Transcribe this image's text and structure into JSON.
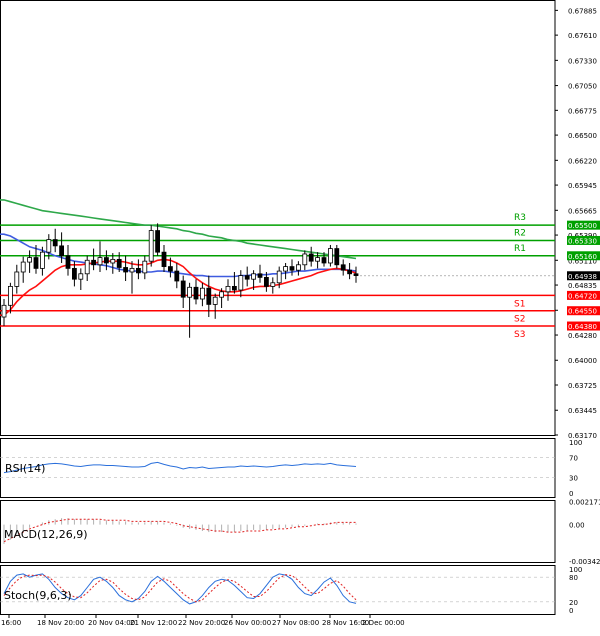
{
  "chart_data": [
    {
      "type": "candlestick",
      "panel": "price",
      "y_ticks": [
        "0.67885",
        "0.67610",
        "0.67330",
        "0.67050",
        "0.66775",
        "0.66500",
        "0.66220",
        "0.65945",
        "0.65665",
        "0.65390",
        "0.65110",
        "0.64835",
        "0.64555",
        "0.64280",
        "0.64000",
        "0.63725",
        "0.63445",
        "0.63170"
      ],
      "ylim": [
        0.6317,
        0.68
      ],
      "x_labels": [
        "16:00",
        "18 Nov 20:00",
        "20 Nov 04:00",
        "21 Nov 12:00",
        "22 Nov 20:00",
        "26 Nov 00:00",
        "27 Nov 08:00",
        "28 Nov 16:00",
        "2 Dec 00:00"
      ],
      "current_price": "0.64938",
      "pivot_levels": [
        {
          "name": "R3",
          "value": 0.655,
          "label": "0.65500",
          "color": "#00a000"
        },
        {
          "name": "R2",
          "value": 0.6533,
          "label": "0.65330",
          "color": "#00a000"
        },
        {
          "name": "R1",
          "value": 0.6516,
          "label": "0.65160",
          "color": "#00a000"
        },
        {
          "name": "S1",
          "value": 0.6472,
          "label": "0.64720",
          "color": "#ff0000"
        },
        {
          "name": "S2",
          "value": 0.6455,
          "label": "0.64550",
          "color": "#ff0000"
        },
        {
          "name": "S3",
          "value": 0.6438,
          "label": "0.64380",
          "color": "#ff0000"
        }
      ],
      "candles": [
        {
          "o": 0.6448,
          "h": 0.6468,
          "l": 0.6438,
          "c": 0.6461
        },
        {
          "o": 0.6461,
          "h": 0.6486,
          "l": 0.6452,
          "c": 0.6482
        },
        {
          "o": 0.6482,
          "h": 0.6506,
          "l": 0.6474,
          "c": 0.6498
        },
        {
          "o": 0.6498,
          "h": 0.6515,
          "l": 0.6486,
          "c": 0.6509
        },
        {
          "o": 0.6509,
          "h": 0.6522,
          "l": 0.6497,
          "c": 0.6514
        },
        {
          "o": 0.6514,
          "h": 0.6528,
          "l": 0.6496,
          "c": 0.6502
        },
        {
          "o": 0.6502,
          "h": 0.6526,
          "l": 0.6494,
          "c": 0.652
        },
        {
          "o": 0.652,
          "h": 0.654,
          "l": 0.6512,
          "c": 0.6534
        },
        {
          "o": 0.6534,
          "h": 0.6546,
          "l": 0.652,
          "c": 0.6527
        },
        {
          "o": 0.6527,
          "h": 0.6542,
          "l": 0.6508,
          "c": 0.6516
        },
        {
          "o": 0.6516,
          "h": 0.6528,
          "l": 0.6494,
          "c": 0.6502
        },
        {
          "o": 0.6502,
          "h": 0.651,
          "l": 0.6482,
          "c": 0.649
        },
        {
          "o": 0.649,
          "h": 0.6502,
          "l": 0.6478,
          "c": 0.6496
        },
        {
          "o": 0.6496,
          "h": 0.6516,
          "l": 0.6488,
          "c": 0.6511
        },
        {
          "o": 0.6511,
          "h": 0.6524,
          "l": 0.65,
          "c": 0.6506
        },
        {
          "o": 0.6506,
          "h": 0.6532,
          "l": 0.6498,
          "c": 0.6514
        },
        {
          "o": 0.6514,
          "h": 0.6522,
          "l": 0.65,
          "c": 0.6508
        },
        {
          "o": 0.6508,
          "h": 0.6519,
          "l": 0.6496,
          "c": 0.6512
        },
        {
          "o": 0.6512,
          "h": 0.652,
          "l": 0.6498,
          "c": 0.6503
        },
        {
          "o": 0.6503,
          "h": 0.6516,
          "l": 0.6488,
          "c": 0.6498
        },
        {
          "o": 0.6498,
          "h": 0.651,
          "l": 0.6474,
          "c": 0.6502
        },
        {
          "o": 0.6502,
          "h": 0.6512,
          "l": 0.649,
          "c": 0.6497
        },
        {
          "o": 0.6497,
          "h": 0.6516,
          "l": 0.649,
          "c": 0.651
        },
        {
          "o": 0.651,
          "h": 0.655,
          "l": 0.6504,
          "c": 0.6544
        },
        {
          "o": 0.6544,
          "h": 0.6552,
          "l": 0.6516,
          "c": 0.652
        },
        {
          "o": 0.652,
          "h": 0.6528,
          "l": 0.6498,
          "c": 0.6504
        },
        {
          "o": 0.6504,
          "h": 0.6514,
          "l": 0.6492,
          "c": 0.6499
        },
        {
          "o": 0.6499,
          "h": 0.6508,
          "l": 0.648,
          "c": 0.6488
        },
        {
          "o": 0.6488,
          "h": 0.6494,
          "l": 0.6458,
          "c": 0.647
        },
        {
          "o": 0.647,
          "h": 0.6486,
          "l": 0.6425,
          "c": 0.6481
        },
        {
          "o": 0.6481,
          "h": 0.649,
          "l": 0.6462,
          "c": 0.6468
        },
        {
          "o": 0.6468,
          "h": 0.6486,
          "l": 0.646,
          "c": 0.648
        },
        {
          "o": 0.648,
          "h": 0.6494,
          "l": 0.6448,
          "c": 0.6462
        },
        {
          "o": 0.6462,
          "h": 0.6474,
          "l": 0.6446,
          "c": 0.647
        },
        {
          "o": 0.647,
          "h": 0.648,
          "l": 0.6458,
          "c": 0.6476
        },
        {
          "o": 0.6476,
          "h": 0.649,
          "l": 0.6466,
          "c": 0.6482
        },
        {
          "o": 0.6482,
          "h": 0.6498,
          "l": 0.6474,
          "c": 0.6478
        },
        {
          "o": 0.6478,
          "h": 0.65,
          "l": 0.647,
          "c": 0.6494
        },
        {
          "o": 0.6494,
          "h": 0.6504,
          "l": 0.6482,
          "c": 0.649
        },
        {
          "o": 0.649,
          "h": 0.65,
          "l": 0.6478,
          "c": 0.6496
        },
        {
          "o": 0.6496,
          "h": 0.6506,
          "l": 0.6486,
          "c": 0.6492
        },
        {
          "o": 0.6492,
          "h": 0.6498,
          "l": 0.6476,
          "c": 0.6482
        },
        {
          "o": 0.6482,
          "h": 0.6492,
          "l": 0.6474,
          "c": 0.6486
        },
        {
          "o": 0.6486,
          "h": 0.6504,
          "l": 0.648,
          "c": 0.6499
        },
        {
          "o": 0.6499,
          "h": 0.6508,
          "l": 0.649,
          "c": 0.6504
        },
        {
          "o": 0.6504,
          "h": 0.6512,
          "l": 0.6494,
          "c": 0.65
        },
        {
          "o": 0.65,
          "h": 0.651,
          "l": 0.6494,
          "c": 0.6506
        },
        {
          "o": 0.6506,
          "h": 0.6522,
          "l": 0.65,
          "c": 0.6518
        },
        {
          "o": 0.6518,
          "h": 0.6526,
          "l": 0.6504,
          "c": 0.651
        },
        {
          "o": 0.651,
          "h": 0.652,
          "l": 0.6502,
          "c": 0.6514
        },
        {
          "o": 0.6514,
          "h": 0.652,
          "l": 0.6504,
          "c": 0.6508
        },
        {
          "o": 0.6508,
          "h": 0.6528,
          "l": 0.6504,
          "c": 0.6524
        },
        {
          "o": 0.6524,
          "h": 0.6528,
          "l": 0.6502,
          "c": 0.6506
        },
        {
          "o": 0.6506,
          "h": 0.6512,
          "l": 0.6494,
          "c": 0.65
        },
        {
          "o": 0.65,
          "h": 0.6508,
          "l": 0.649,
          "c": 0.6496
        },
        {
          "o": 0.6496,
          "h": 0.6504,
          "l": 0.6486,
          "c": 0.6494
        }
      ],
      "ma_red": [
        0.645,
        0.6456,
        0.6465,
        0.6472,
        0.6478,
        0.6482,
        0.6488,
        0.6494,
        0.65,
        0.6504,
        0.6506,
        0.6506,
        0.6506,
        0.6507,
        0.6508,
        0.6509,
        0.651,
        0.651,
        0.651,
        0.6509,
        0.6507,
        0.6506,
        0.6506,
        0.6508,
        0.6511,
        0.6512,
        0.6511,
        0.6508,
        0.6504,
        0.6497,
        0.6491,
        0.6486,
        0.6482,
        0.6479,
        0.6477,
        0.6476,
        0.6476,
        0.6477,
        0.6479,
        0.6481,
        0.6482,
        0.6482,
        0.6483,
        0.6484,
        0.6486,
        0.6488,
        0.649,
        0.6492,
        0.6494,
        0.6497,
        0.6499,
        0.6501,
        0.6502,
        0.6501,
        0.6499,
        0.6497
      ],
      "ma_blue": [
        0.654,
        0.6538,
        0.6534,
        0.653,
        0.6526,
        0.6524,
        0.6522,
        0.6519,
        0.6516,
        0.6514,
        0.6512,
        0.651,
        0.6509,
        0.6508,
        0.6507,
        0.6506,
        0.6505,
        0.6503,
        0.6501,
        0.65,
        0.6499,
        0.6499,
        0.6498,
        0.6498,
        0.6499,
        0.6499,
        0.6498,
        0.6497,
        0.6496,
        0.6495,
        0.6494,
        0.6494,
        0.6493,
        0.6493,
        0.6493,
        0.6493,
        0.6493,
        0.6494,
        0.6494,
        0.6495,
        0.6495,
        0.6495,
        0.6496,
        0.6496,
        0.6497,
        0.6498,
        0.6499,
        0.6499,
        0.65,
        0.6501,
        0.6501,
        0.6501,
        0.6501,
        0.6501,
        0.65,
        0.6499
      ],
      "ma_green": [
        0.6578,
        0.6576,
        0.6574,
        0.6572,
        0.657,
        0.6568,
        0.6566,
        0.6565,
        0.6564,
        0.6563,
        0.6562,
        0.6561,
        0.656,
        0.6559,
        0.6558,
        0.6557,
        0.6556,
        0.6555,
        0.6554,
        0.6553,
        0.6552,
        0.6551,
        0.655,
        0.655,
        0.6549,
        0.6548,
        0.6547,
        0.6546,
        0.6544,
        0.6543,
        0.6541,
        0.654,
        0.6538,
        0.6537,
        0.6536,
        0.6534,
        0.6533,
        0.6532,
        0.653,
        0.6529,
        0.6528,
        0.6527,
        0.6526,
        0.6525,
        0.6524,
        0.6523,
        0.6522,
        0.6521,
        0.652,
        0.6519,
        0.6518,
        0.6517,
        0.6516,
        0.6515,
        0.6514,
        0.6513
      ]
    },
    {
      "type": "line",
      "panel": "rsi",
      "label": "RSI(14)",
      "y_ticks": [
        "100",
        "70",
        "30",
        "0"
      ],
      "ylim": [
        0,
        100
      ],
      "levels": [
        70,
        30
      ],
      "values": [
        40,
        42,
        45,
        48,
        50,
        52,
        55,
        57,
        58,
        57,
        55,
        53,
        52,
        54,
        55,
        55,
        54,
        54,
        53,
        52,
        51,
        51,
        52,
        58,
        60,
        56,
        53,
        51,
        47,
        50,
        49,
        51,
        48,
        49,
        50,
        51,
        51,
        53,
        52,
        53,
        52,
        51,
        52,
        54,
        55,
        54,
        55,
        57,
        56,
        57,
        56,
        58,
        55,
        54,
        53,
        52
      ]
    },
    {
      "type": "bar",
      "panel": "macd",
      "label": "MACD(12,26,9)",
      "y_ticks": [
        "0.002171",
        "0.00",
        "-0.003423"
      ],
      "ylim": [
        -0.0035,
        0.0023
      ],
      "histogram": [
        -0.0018,
        -0.0014,
        -0.001,
        -0.0006,
        -0.0003,
        0.0,
        0.0002,
        0.0004,
        0.0005,
        0.0006,
        0.0006,
        0.0005,
        0.0005,
        0.0005,
        0.0005,
        0.0004,
        0.0004,
        0.0004,
        0.0003,
        0.0003,
        0.0002,
        0.0002,
        0.0002,
        0.0003,
        0.0003,
        0.0002,
        0.0001,
        -0.0001,
        -0.0003,
        -0.0004,
        -0.0005,
        -0.0006,
        -0.0007,
        -0.0007,
        -0.0007,
        -0.0007,
        -0.0007,
        -0.0006,
        -0.0006,
        -0.0005,
        -0.0005,
        -0.0005,
        -0.0004,
        -0.0004,
        -0.0003,
        -0.0002,
        -0.0002,
        -0.0001,
        0.0,
        0.0001,
        0.0001,
        0.0002,
        0.0002,
        0.0002,
        0.0002,
        0.0001
      ],
      "signal": [
        -0.0016,
        -0.0013,
        -0.001,
        -0.0007,
        -0.0004,
        -0.0002,
        0.0,
        0.0002,
        0.0003,
        0.0004,
        0.0005,
        0.0005,
        0.0005,
        0.0005,
        0.0005,
        0.0005,
        0.0004,
        0.0004,
        0.0004,
        0.0004,
        0.0003,
        0.0003,
        0.0003,
        0.0003,
        0.0003,
        0.0003,
        0.0002,
        0.0001,
        -0.0001,
        -0.0002,
        -0.0003,
        -0.0004,
        -0.0005,
        -0.0006,
        -0.0006,
        -0.0007,
        -0.0007,
        -0.0007,
        -0.0006,
        -0.0006,
        -0.0006,
        -0.0005,
        -0.0005,
        -0.0004,
        -0.0004,
        -0.0003,
        -0.0002,
        -0.0002,
        -0.0001,
        0.0,
        0.0,
        0.0001,
        0.0002,
        0.0002,
        0.0002,
        0.0002
      ]
    },
    {
      "type": "line",
      "panel": "stochastic",
      "label": "Stoch(9,6,3)",
      "y_ticks": [
        "100",
        "80",
        "20",
        "0"
      ],
      "ylim": [
        0,
        100
      ],
      "levels": [
        80,
        20
      ],
      "main": [
        40,
        70,
        85,
        88,
        80,
        85,
        88,
        75,
        55,
        40,
        30,
        25,
        35,
        55,
        75,
        80,
        70,
        55,
        35,
        25,
        20,
        28,
        45,
        70,
        82,
        70,
        55,
        40,
        25,
        15,
        20,
        35,
        55,
        70,
        75,
        72,
        60,
        45,
        30,
        28,
        40,
        60,
        80,
        88,
        85,
        75,
        55,
        40,
        35,
        50,
        68,
        78,
        60,
        35,
        20,
        16
      ],
      "signal": [
        35,
        55,
        72,
        82,
        85,
        84,
        85,
        80,
        68,
        52,
        40,
        32,
        30,
        42,
        58,
        72,
        75,
        68,
        52,
        38,
        28,
        25,
        32,
        50,
        68,
        76,
        70,
        55,
        40,
        28,
        20,
        25,
        40,
        55,
        68,
        74,
        70,
        58,
        45,
        33,
        33,
        45,
        62,
        78,
        86,
        84,
        72,
        56,
        42,
        40,
        52,
        65,
        72,
        58,
        40,
        25
      ]
    }
  ]
}
